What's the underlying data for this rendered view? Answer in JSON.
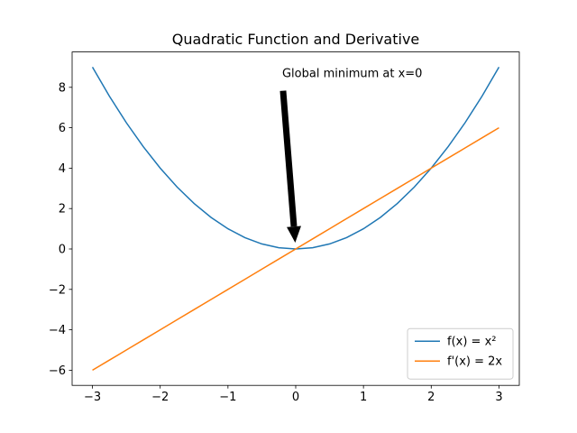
{
  "chart_data": {
    "type": "line",
    "title": "Quadratic Function and Derivative",
    "x": [
      -3,
      -2.75,
      -2.5,
      -2.25,
      -2,
      -1.75,
      -1.5,
      -1.25,
      -1,
      -0.75,
      -0.5,
      -0.25,
      0,
      0.25,
      0.5,
      0.75,
      1,
      1.25,
      1.5,
      1.75,
      2,
      2.25,
      2.5,
      2.75,
      3
    ],
    "series": [
      {
        "name": "f(x) = x²",
        "color": "#1f77b4",
        "values": [
          9,
          7.5625,
          6.25,
          5.0625,
          4,
          3.0625,
          2.25,
          1.5625,
          1,
          0.5625,
          0.25,
          0.0625,
          0,
          0.0625,
          0.25,
          0.5625,
          1,
          1.5625,
          2.25,
          3.0625,
          4,
          5.0625,
          6.25,
          7.5625,
          9
        ]
      },
      {
        "name": "f'(x) = 2x",
        "color": "#ff7f0e",
        "values": [
          -6,
          -5.5,
          -5,
          -4.5,
          -4,
          -3.5,
          -3,
          -2.5,
          -2,
          -1.5,
          -1,
          -0.5,
          0,
          0.5,
          1,
          1.5,
          2,
          2.5,
          3,
          3.5,
          4,
          4.5,
          5,
          5.5,
          6
        ]
      }
    ],
    "xlim": [
      -3.3,
      3.3
    ],
    "ylim": [
      -6.75,
      9.75
    ],
    "xticks": [
      {
        "value": -3,
        "label": "−3"
      },
      {
        "value": -2,
        "label": "−2"
      },
      {
        "value": -1,
        "label": "−1"
      },
      0,
      1,
      2,
      3
    ],
    "yticks": [
      {
        "value": -6,
        "label": "−6"
      },
      {
        "value": -4,
        "label": "−4"
      },
      {
        "value": -2,
        "label": "−2"
      },
      0,
      2,
      4,
      6,
      8
    ],
    "legend": "lower right",
    "annotation": {
      "text": "Global minimum at x=0",
      "xy": [
        0,
        0
      ],
      "xytext": [
        -0.2,
        8.5
      ]
    }
  }
}
